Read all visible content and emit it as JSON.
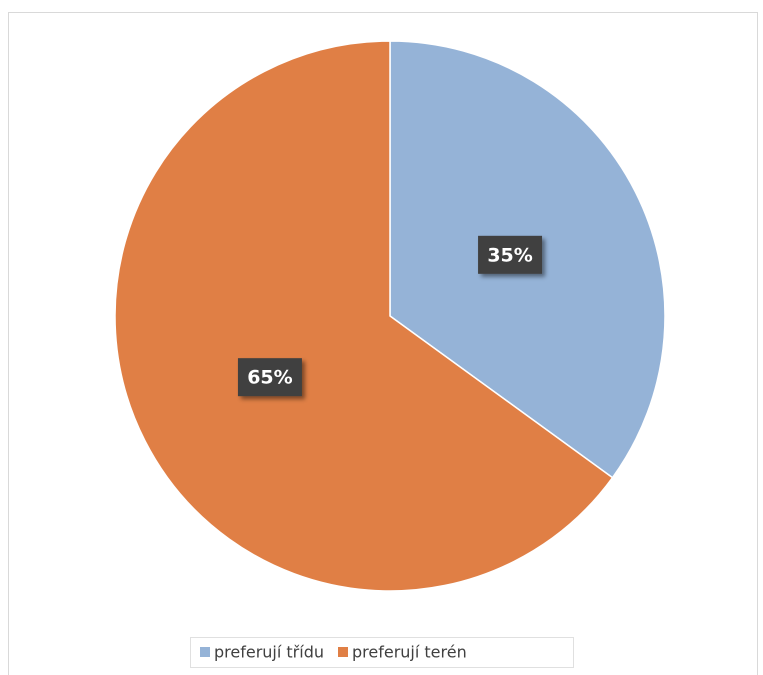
{
  "chart_data": {
    "type": "pie",
    "categories": [
      "preferují třídu",
      "preferují terén"
    ],
    "values": [
      35,
      65
    ],
    "value_labels": [
      "35%",
      "65%"
    ],
    "colors": [
      "#95b3d7",
      "#e07f45"
    ],
    "legend": "bottom"
  }
}
